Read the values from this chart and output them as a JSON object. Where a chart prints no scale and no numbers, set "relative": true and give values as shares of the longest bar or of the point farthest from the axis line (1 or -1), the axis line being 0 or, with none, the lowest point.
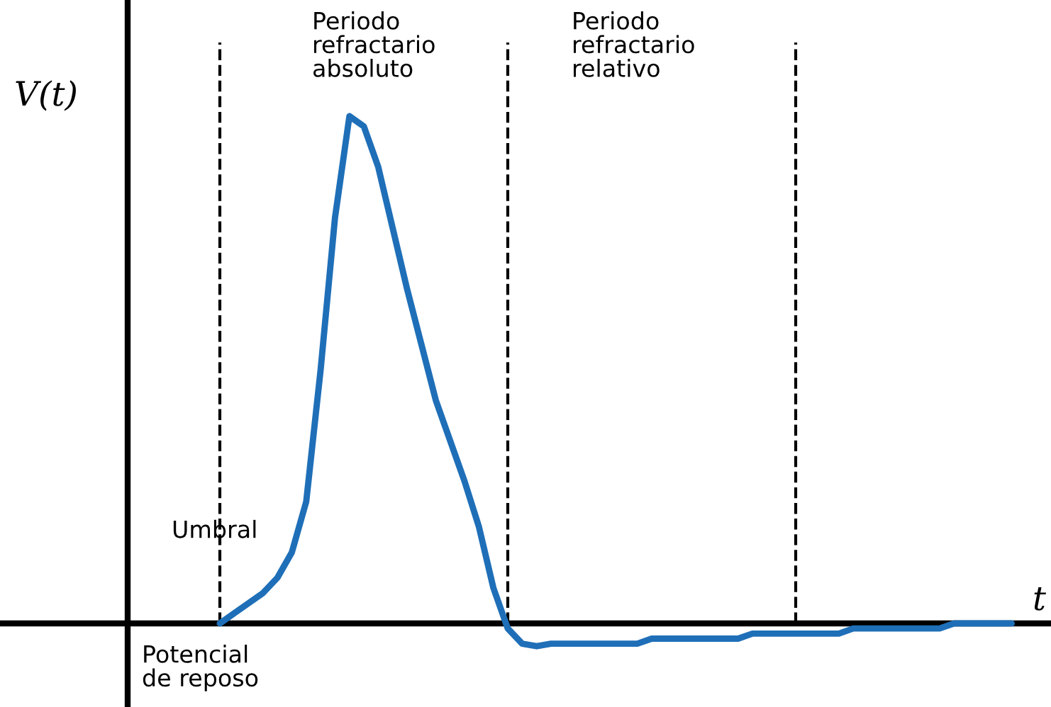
{
  "chart_data": {
    "type": "line",
    "relative": true,
    "ylabel": "V(t)",
    "xlabel": "t",
    "categories": [
      null,
      null,
      null,
      null,
      null,
      null,
      null,
      null,
      null,
      null,
      null,
      null,
      null,
      null,
      null,
      null,
      null,
      null,
      null,
      null,
      null,
      null,
      null,
      null,
      null,
      null,
      null,
      null,
      null,
      null,
      null,
      null,
      null,
      null,
      null,
      null,
      null,
      null,
      null,
      null,
      null,
      null,
      null,
      null,
      null,
      null,
      null,
      null,
      null,
      null,
      null,
      null,
      null,
      null,
      null,
      null
    ],
    "series": [
      {
        "color": "#1f6fb8",
        "values": [
          0,
          0.02,
          0.04,
          0.06,
          0.09,
          0.14,
          0.24,
          0.5,
          0.8,
          1,
          0.98,
          0.9,
          0.78,
          0.66,
          0.55,
          0.44,
          0.36,
          0.28,
          0.19,
          0.07,
          -0.01,
          -0.04,
          -0.045,
          -0.04,
          -0.04,
          -0.04,
          -0.04,
          -0.04,
          -0.04,
          -0.04,
          -0.03,
          -0.03,
          -0.03,
          -0.03,
          -0.03,
          -0.03,
          -0.03,
          -0.02,
          -0.02,
          -0.02,
          -0.02,
          -0.02,
          -0.02,
          -0.02,
          -0.01,
          -0.01,
          -0.01,
          -0.01,
          -0.01,
          -0.01,
          -0.01,
          0,
          0,
          0,
          0,
          0
        ]
      }
    ],
    "annotations": [
      "Periodo\nrefractario\nabsoluto",
      "Periodo\nrefractario\nrelativo",
      "Potencial\nde reposo",
      "Umbral"
    ],
    "marker": "none",
    "line_style": "solid",
    "legend": false,
    "grid": "x"
  }
}
